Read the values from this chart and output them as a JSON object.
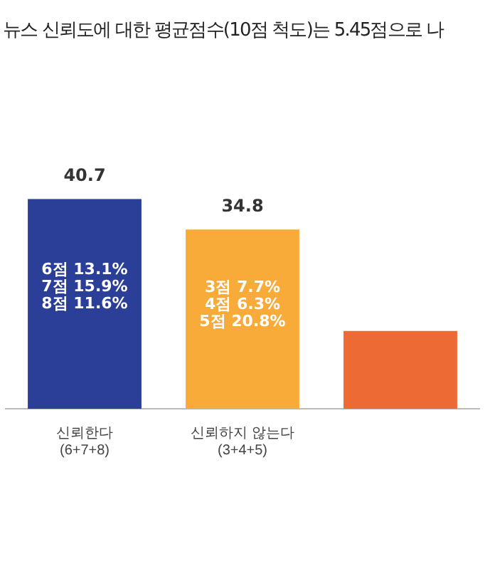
{
  "chart_data": {
    "type": "bar",
    "title": "뉴스 신뢰도에 대한 평균점수(10점 척도)는 5.45점으로 나",
    "categories": [
      "신뢰한다\n(6+7+8)",
      "신뢰하지 않는다\n(3+4+5)",
      null
    ],
    "values": [
      40.7,
      34.8,
      15.1
    ],
    "colors": [
      "#2b3f99",
      "#f9ab3a",
      "#ee6a35"
    ],
    "value_labels": [
      "40.7",
      "34.8",
      null
    ],
    "tick_labels": "x",
    "annotations": [
      "6점 13.1%\n7점 15.9%\n8점 11.6%",
      "3점 7.7%\n4점 6.3%\n5점 20.8%"
    ]
  }
}
